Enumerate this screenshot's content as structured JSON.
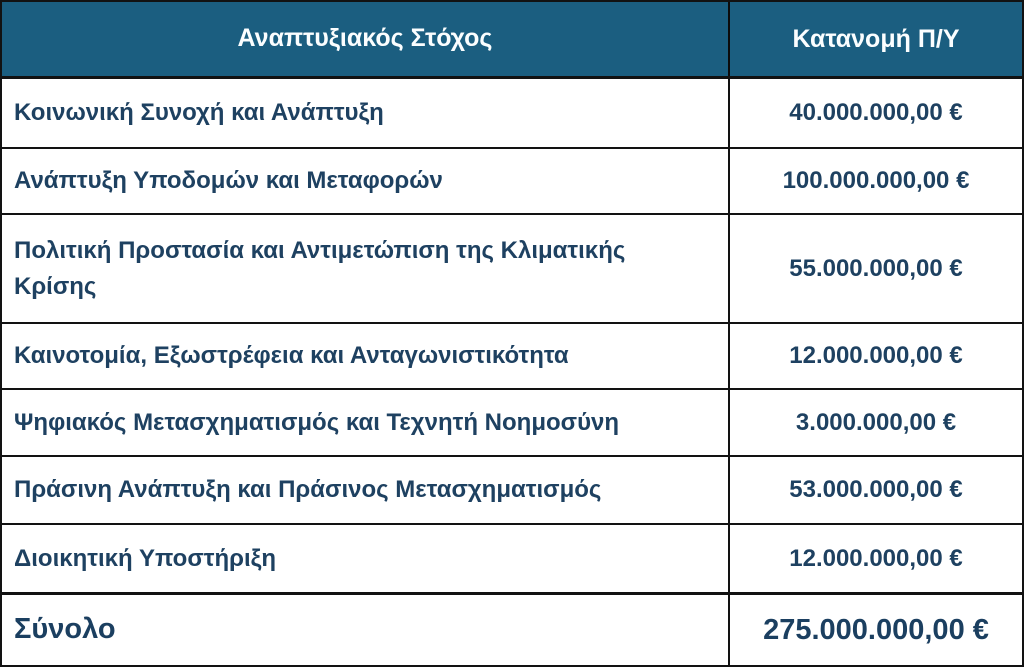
{
  "table": {
    "header": {
      "goal_column": "Αναπτυξιακός Στόχος",
      "budget_column": "Κατανομή Π/Υ"
    },
    "rows": [
      {
        "label": "Κοινωνική Συνοχή και Ανάπτυξη",
        "value": "40.000.000,00 €"
      },
      {
        "label": "Ανάπτυξη Υποδομών και Μεταφορών",
        "value": "100.000.000,00 €"
      },
      {
        "label": "Πολιτική Προστασία και Αντιμετώπιση της Κλιματικής Κρίσης",
        "value": "55.000.000,00 €"
      },
      {
        "label": "Καινοτομία, Εξωστρέφεια και Ανταγωνιστικότητα",
        "value": "12.000.000,00 €"
      },
      {
        "label": "Ψηφιακός Μετασχηματισμός και Τεχνητή Νοημοσύνη",
        "value": "3.000.000,00 €"
      },
      {
        "label": "Πράσινη Ανάπτυξη και Πράσινος Μετασχηματισμός",
        "value": "53.000.000,00 €"
      },
      {
        "label": "Διοικητική Υποστήριξη",
        "value": "12.000.000,00 €"
      }
    ],
    "total": {
      "label": "Σύνολο",
      "value": "275.000.000,00 €"
    }
  },
  "colors": {
    "header_background": "#1b5e80",
    "header_text": "#fbfeff",
    "body_text": "#1e4161",
    "border": "#121212"
  }
}
